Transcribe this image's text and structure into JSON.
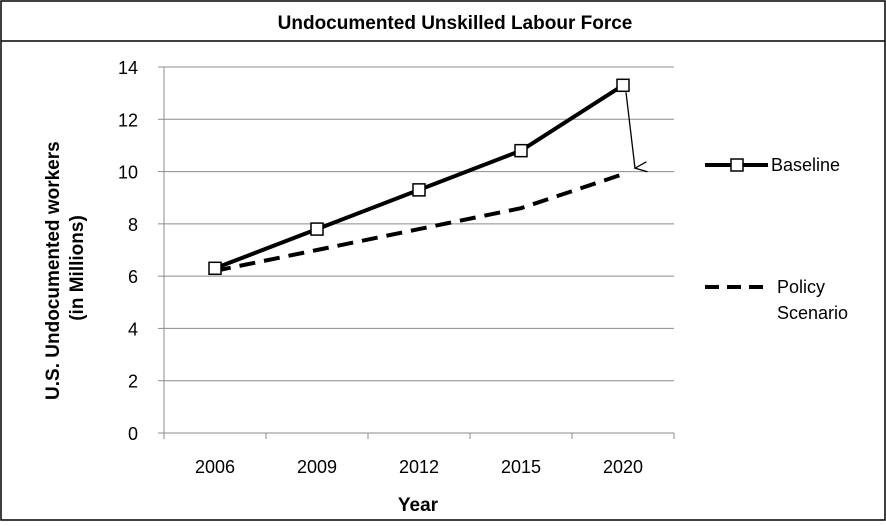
{
  "chart_data": {
    "type": "line",
    "title": "Undocumented Unskilled Labour Force",
    "xlabel": "Year",
    "ylabel_line1": "U.S. Undocumented workers",
    "ylabel_line2": "(in Millions)",
    "categories": [
      "2006",
      "2009",
      "2012",
      "2015",
      "2020"
    ],
    "ylim": [
      0,
      14
    ],
    "yticks": [
      0,
      2,
      4,
      6,
      8,
      10,
      12,
      14
    ],
    "grid": true,
    "legend_position": "right",
    "series": [
      {
        "name": "Baseline",
        "values": [
          6.3,
          7.8,
          9.3,
          10.8,
          13.3
        ],
        "line_style": "solid",
        "marker": "square",
        "color": "#000000"
      },
      {
        "name": "Policy Scenario",
        "legend_lines": [
          "Policy",
          "Scenario"
        ],
        "values": [
          6.2,
          7.0,
          7.8,
          8.6,
          9.9
        ],
        "line_style": "dashed",
        "marker": "none",
        "color": "#000000"
      }
    ],
    "annotations": [
      {
        "type": "arrow",
        "from": {
          "category": "2020",
          "value": 13.3
        },
        "to": {
          "category": "2020",
          "value": 9.9
        }
      }
    ]
  }
}
